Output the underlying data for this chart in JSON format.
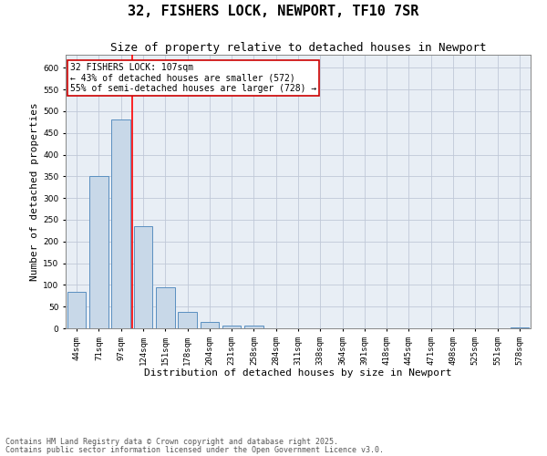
{
  "title1": "32, FISHERS LOCK, NEWPORT, TF10 7SR",
  "title2": "Size of property relative to detached houses in Newport",
  "xlabel": "Distribution of detached houses by size in Newport",
  "ylabel": "Number of detached properties",
  "categories": [
    "44sqm",
    "71sqm",
    "97sqm",
    "124sqm",
    "151sqm",
    "178sqm",
    "204sqm",
    "231sqm",
    "258sqm",
    "284sqm",
    "311sqm",
    "338sqm",
    "364sqm",
    "391sqm",
    "418sqm",
    "445sqm",
    "471sqm",
    "498sqm",
    "525sqm",
    "551sqm",
    "578sqm"
  ],
  "values": [
    85,
    350,
    480,
    235,
    95,
    37,
    15,
    6,
    7,
    0,
    0,
    0,
    0,
    0,
    0,
    0,
    0,
    0,
    0,
    0,
    2
  ],
  "bar_color": "#c8d8e8",
  "bar_edge_color": "#5a8fc0",
  "red_line_x": 2.5,
  "annotation_text": "32 FISHERS LOCK: 107sqm\n← 43% of detached houses are smaller (572)\n55% of semi-detached houses are larger (728) →",
  "annotation_box_color": "#ffffff",
  "annotation_box_edge": "#cc0000",
  "ylim": [
    0,
    630
  ],
  "yticks": [
    0,
    50,
    100,
    150,
    200,
    250,
    300,
    350,
    400,
    450,
    500,
    550,
    600
  ],
  "grid_color": "#c0c8d8",
  "bg_color": "#e8eef5",
  "footer1": "Contains HM Land Registry data © Crown copyright and database right 2025.",
  "footer2": "Contains public sector information licensed under the Open Government Licence v3.0.",
  "title_fontsize": 11,
  "subtitle_fontsize": 9,
  "axis_label_fontsize": 8,
  "tick_fontsize": 6.5,
  "annotation_fontsize": 7,
  "footer_fontsize": 6
}
